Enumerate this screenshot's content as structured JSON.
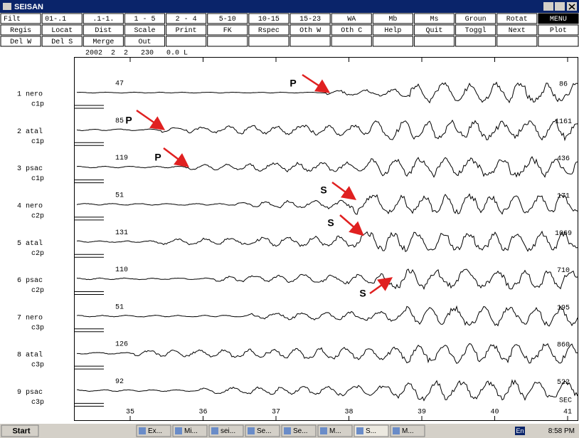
{
  "window": {
    "title": "SEISAN"
  },
  "menu": {
    "rows": [
      [
        "Filt",
        "01-.1",
        ".1-1.",
        "1 - 5",
        "2 - 4",
        "5-10",
        "10-15",
        "15-23",
        "WA",
        "Mb",
        "Ms",
        "Groun",
        "Rotat",
        "MENU"
      ],
      [
        "Regis",
        "Locat",
        "Dist",
        "Scale",
        "Print",
        "FK",
        "Rspec",
        "Oth W",
        "Oth C",
        "Help",
        "Quit",
        "Toggl",
        "Next",
        "Plot"
      ],
      [
        "Del W",
        "Del S",
        "Merge",
        "Out"
      ]
    ]
  },
  "header": "2002  2  2   230   0.0 L",
  "traces": [
    {
      "station": "1 nero",
      "component": "c1p",
      "left": "47",
      "right": "86"
    },
    {
      "station": "2 atal",
      "component": "c1p",
      "left": "85",
      "right": "1161"
    },
    {
      "station": "3 psac",
      "component": "c1p",
      "left": "119",
      "right": "436"
    },
    {
      "station": "4 nero",
      "component": "c2p",
      "left": "51",
      "right": "171"
    },
    {
      "station": "5 atal",
      "component": "c2p",
      "left": "131",
      "right": "1069"
    },
    {
      "station": "6 psac",
      "component": "c2p",
      "left": "110",
      "right": "710"
    },
    {
      "station": "7 nero",
      "component": "c3p",
      "left": "51",
      "right": "195"
    },
    {
      "station": "8 atal",
      "component": "c3p",
      "left": "126",
      "right": "860"
    },
    {
      "station": "9 psac",
      "component": "c3p",
      "left": "92",
      "right": "522"
    }
  ],
  "annotations": [
    {
      "label": "P"
    },
    {
      "label": "P"
    },
    {
      "label": "P"
    },
    {
      "label": "S"
    },
    {
      "label": "S"
    },
    {
      "label": "S"
    }
  ],
  "time_axis": {
    "ticks": [
      "35",
      "36",
      "37",
      "38",
      "39",
      "40",
      "41"
    ],
    "unit": "SEC"
  },
  "taskbar": {
    "start": "Start",
    "items": [
      "Ex...",
      "Mi...",
      "sei...",
      "Se...",
      "Se...",
      "M...",
      "S...",
      "M..."
    ],
    "language": "En",
    "clock": "8:58 PM"
  }
}
